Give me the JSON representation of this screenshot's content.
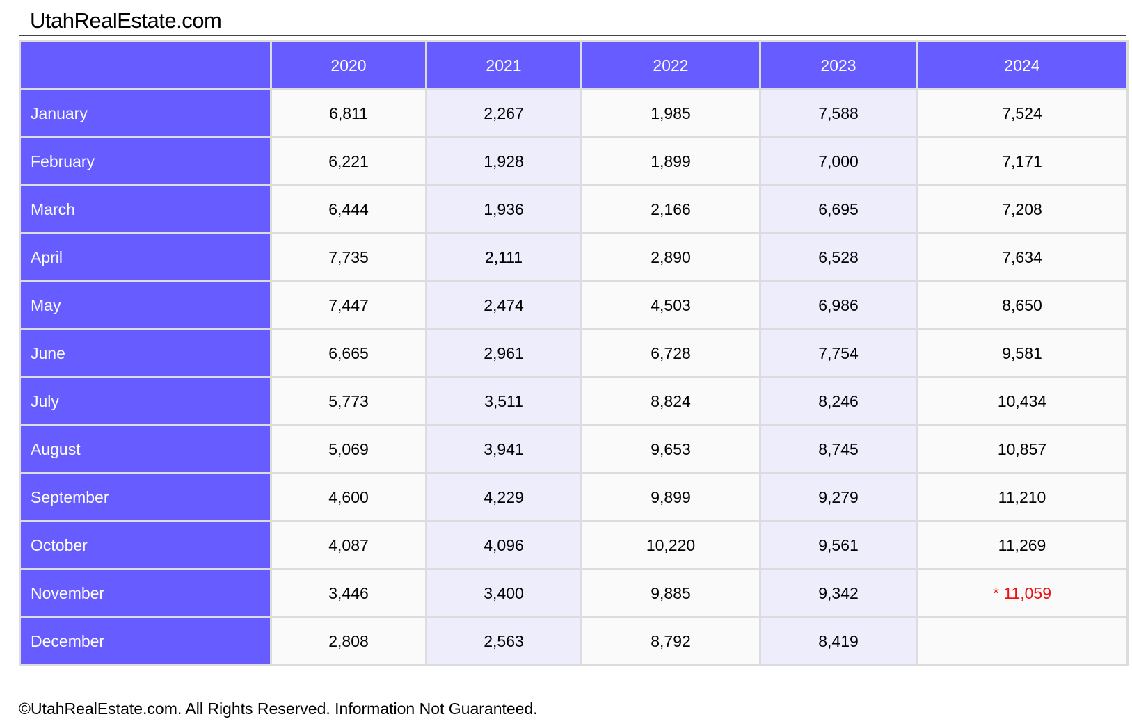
{
  "header": {
    "title": "UtahRealEstate.com"
  },
  "table": {
    "columns": [
      "2020",
      "2021",
      "2022",
      "2023",
      "2024"
    ],
    "rows": [
      {
        "label": "January",
        "cells": [
          "6,811",
          "2,267",
          "1,985",
          "7,588",
          "7,524"
        ]
      },
      {
        "label": "February",
        "cells": [
          "6,221",
          "1,928",
          "1,899",
          "7,000",
          "7,171"
        ]
      },
      {
        "label": "March",
        "cells": [
          "6,444",
          "1,936",
          "2,166",
          "6,695",
          "7,208"
        ]
      },
      {
        "label": "April",
        "cells": [
          "7,735",
          "2,111",
          "2,890",
          "6,528",
          "7,634"
        ]
      },
      {
        "label": "May",
        "cells": [
          "7,447",
          "2,474",
          "4,503",
          "6,986",
          "8,650"
        ]
      },
      {
        "label": "June",
        "cells": [
          "6,665",
          "2,961",
          "6,728",
          "7,754",
          "9,581"
        ]
      },
      {
        "label": "July",
        "cells": [
          "5,773",
          "3,511",
          "8,824",
          "8,246",
          "10,434"
        ]
      },
      {
        "label": "August",
        "cells": [
          "5,069",
          "3,941",
          "9,653",
          "8,745",
          "10,857"
        ]
      },
      {
        "label": "September",
        "cells": [
          "4,600",
          "4,229",
          "9,899",
          "9,279",
          "11,210"
        ]
      },
      {
        "label": "October",
        "cells": [
          "4,087",
          "4,096",
          "10,220",
          "9,561",
          "11,269"
        ]
      },
      {
        "label": "November",
        "cells": [
          "3,446",
          "3,400",
          "9,885",
          "9,342",
          {
            "text": "* 11,059",
            "color": "#ee1111"
          }
        ]
      },
      {
        "label": "December",
        "cells": [
          "2,808",
          "2,563",
          "8,792",
          "8,419"
        ]
      }
    ]
  },
  "footer": {
    "text": "©UtahRealEstate.com. All Rights Reserved. Information Not Guaranteed."
  }
}
